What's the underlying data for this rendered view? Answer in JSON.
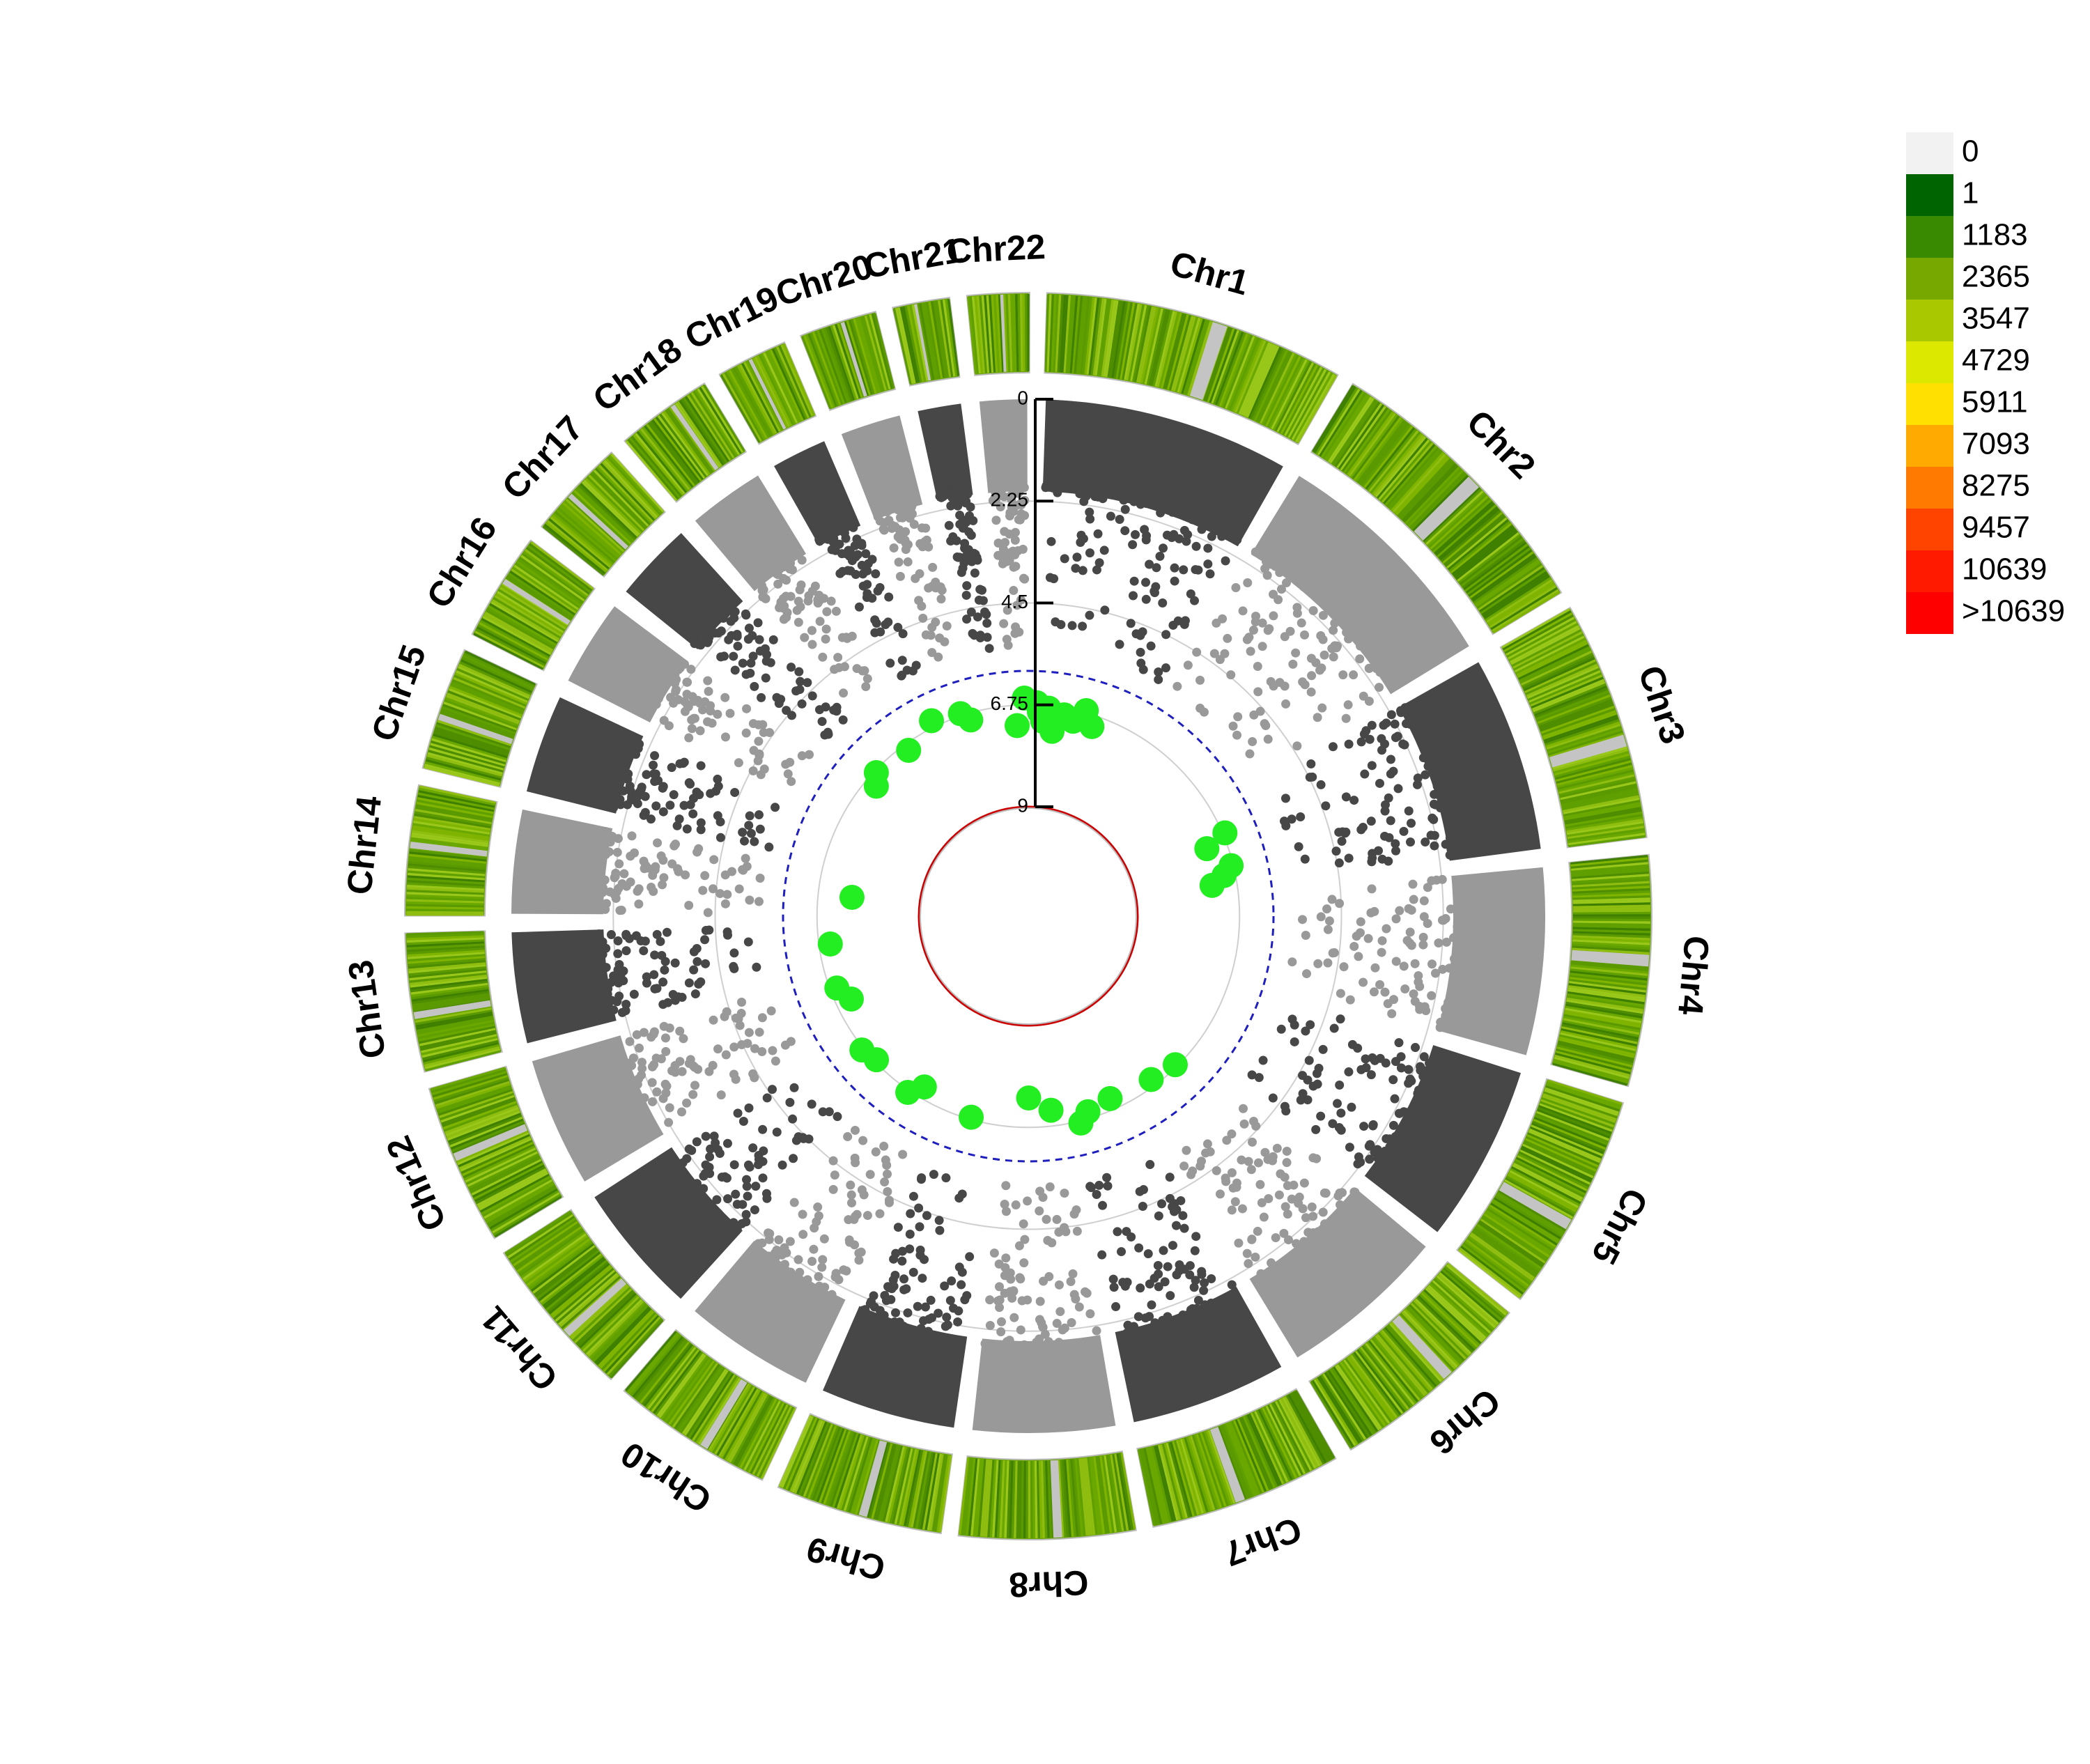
{
  "chart_data": {
    "type": "circular-manhattan",
    "title": "",
    "chromosomes": [
      {
        "name": "Chr1",
        "label": "Chr1",
        "length": 248
      },
      {
        "name": "Chr2",
        "label": "Chr2",
        "length": 242
      },
      {
        "name": "Chr3",
        "label": "Chr3",
        "length": 198
      },
      {
        "name": "Chr4",
        "label": "Chr4",
        "length": 190
      },
      {
        "name": "Chr5",
        "label": "Chr5",
        "length": 181
      },
      {
        "name": "Chr6",
        "label": "Chr6",
        "length": 171
      },
      {
        "name": "Chr7",
        "label": "Chr7",
        "length": 159
      },
      {
        "name": "Chr8",
        "label": "Chr8",
        "length": 145
      },
      {
        "name": "Chr9",
        "label": "Chr9",
        "length": 138
      },
      {
        "name": "Chr10",
        "label": "Chr10",
        "length": 134
      },
      {
        "name": "Chr11",
        "label": "Chr11",
        "length": 135
      },
      {
        "name": "Chr12",
        "label": "Chr12",
        "length": 133
      },
      {
        "name": "Chr13",
        "label": "Chr13",
        "length": 114
      },
      {
        "name": "Chr14",
        "label": "Chr14",
        "length": 107
      },
      {
        "name": "Chr15",
        "label": "Chr15",
        "length": 102
      },
      {
        "name": "Chr16",
        "label": "Chr16",
        "length": 90
      },
      {
        "name": "Chr17",
        "label": "Chr17",
        "length": 83
      },
      {
        "name": "Chr18",
        "label": "Chr18",
        "length": 80
      },
      {
        "name": "Chr19",
        "label": "Chr19",
        "length": 59
      },
      {
        "name": "Chr20",
        "label": "Chr20",
        "length": 64
      },
      {
        "name": "Chr21",
        "label": "Chr21",
        "length": 47
      },
      {
        "name": "Chr22",
        "label": "Chr22",
        "length": 51
      }
    ],
    "y_axis": {
      "ticks": [
        "0",
        "2.25",
        "4.5",
        "6.75",
        "9"
      ],
      "tick_values": [
        0,
        2.25,
        4.5,
        6.75,
        9
      ],
      "range": [
        0,
        9
      ],
      "inverted": true
    },
    "thresholds": [
      {
        "value": 6.0,
        "style": "dashed",
        "color": "#1f1fbf"
      },
      {
        "value": 9.0,
        "style": "solid",
        "color": "#cc0000"
      }
    ],
    "point_colors": {
      "odd": "#474747",
      "even": "#999999",
      "significant": "#22ee22"
    },
    "significant_points": [
      {
        "chr": "Chr1",
        "pos": 0.02,
        "value": 6.7
      },
      {
        "chr": "Chr1",
        "pos": 0.05,
        "value": 6.9
      },
      {
        "chr": "Chr1",
        "pos": 0.09,
        "value": 7.1
      },
      {
        "chr": "Chr1",
        "pos": 0.14,
        "value": 6.8
      },
      {
        "chr": "Chr1",
        "pos": 0.2,
        "value": 7.3
      },
      {
        "chr": "Chr1",
        "pos": 0.3,
        "value": 6.9
      },
      {
        "chr": "Chr1",
        "pos": 0.4,
        "value": 7.0
      },
      {
        "chr": "Chr1",
        "pos": 0.5,
        "value": 6.7
      },
      {
        "chr": "Chr1",
        "pos": 0.6,
        "value": 7.0
      },
      {
        "chr": "Chr3",
        "pos": 0.3,
        "value": 6.7
      },
      {
        "chr": "Chr3",
        "pos": 0.4,
        "value": 7.2
      },
      {
        "chr": "Chr3",
        "pos": 0.7,
        "value": 6.8
      },
      {
        "chr": "Chr3",
        "pos": 0.8,
        "value": 7.0
      },
      {
        "chr": "Chr3",
        "pos": 0.9,
        "value": 7.3
      },
      {
        "chr": "Chr6",
        "pos": 0.3,
        "value": 6.8
      },
      {
        "chr": "Chr6",
        "pos": 0.7,
        "value": 6.9
      },
      {
        "chr": "Chr7",
        "pos": 0.3,
        "value": 7.0
      },
      {
        "chr": "Chr7",
        "pos": 0.7,
        "value": 6.9
      },
      {
        "chr": "Chr7",
        "pos": 0.85,
        "value": 6.7
      },
      {
        "chr": "Chr8",
        "pos": 0.2,
        "value": 7.1
      },
      {
        "chr": "Chr8",
        "pos": 0.6,
        "value": 7.4
      },
      {
        "chr": "Chr9",
        "pos": 0.5,
        "value": 6.8
      },
      {
        "chr": "Chr10",
        "pos": 0.4,
        "value": 7.0
      },
      {
        "chr": "Chr10",
        "pos": 0.6,
        "value": 6.7
      },
      {
        "chr": "Chr11",
        "pos": 0.3,
        "value": 6.8
      },
      {
        "chr": "Chr11",
        "pos": 0.6,
        "value": 6.7
      },
      {
        "chr": "Chr12",
        "pos": 0.4,
        "value": 7.1
      },
      {
        "chr": "Chr12",
        "pos": 0.7,
        "value": 6.9
      },
      {
        "chr": "Chr13",
        "pos": 0.5,
        "value": 7.0
      },
      {
        "chr": "Chr14",
        "pos": 0.5,
        "value": 7.5
      },
      {
        "chr": "Chr17",
        "pos": 0.2,
        "value": 7.0
      },
      {
        "chr": "Chr17",
        "pos": 0.5,
        "value": 6.8
      },
      {
        "chr": "Chr18",
        "pos": 0.5,
        "value": 6.9
      },
      {
        "chr": "Chr19",
        "pos": 0.5,
        "value": 6.6
      },
      {
        "chr": "Chr20",
        "pos": 0.4,
        "value": 6.7
      },
      {
        "chr": "Chr20",
        "pos": 0.7,
        "value": 6.9
      },
      {
        "chr": "Chr22",
        "pos": 0.4,
        "value": 7.2
      },
      {
        "chr": "Chr22",
        "pos": 0.8,
        "value": 6.6
      }
    ],
    "density_legend": {
      "labels": [
        "0",
        "1",
        "1183",
        "2365",
        "3547",
        "4729",
        "5911",
        "7093",
        "8275",
        "9457",
        "10639",
        ">10639"
      ],
      "colors": [
        "#f2f2f2",
        "#006400",
        "#3a8a00",
        "#77a800",
        "#aac800",
        "#dde800",
        "#ffe000",
        "#ffaa00",
        "#ff7a00",
        "#ff4400",
        "#ff1a00",
        "#ff0000"
      ],
      "placement": "top-right"
    }
  }
}
